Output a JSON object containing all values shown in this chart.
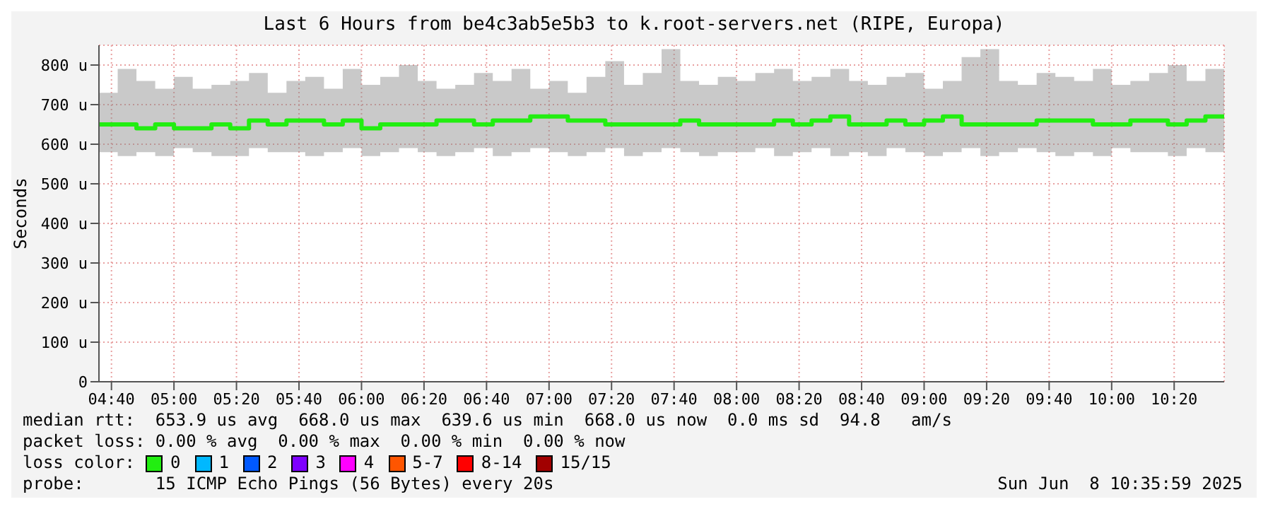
{
  "chart_data": {
    "type": "step",
    "title": "Last 6 Hours from be4c3ab5e5b3 to k.root-servers.net (RIPE, Europa)",
    "ylabel": "Seconds",
    "x": [
      4.6,
      4.7,
      4.8,
      4.9,
      5.0,
      5.1,
      5.2,
      5.3,
      5.4,
      5.5,
      5.6,
      5.7,
      5.8,
      5.9,
      6.0,
      6.1,
      6.2,
      6.3,
      6.4,
      6.5,
      6.6,
      6.7,
      6.8,
      6.9,
      7.0,
      7.1,
      7.2,
      7.3,
      7.4,
      7.5,
      7.6,
      7.7,
      7.8,
      7.9,
      8.0,
      8.1,
      8.2,
      8.3,
      8.4,
      8.5,
      8.6,
      8.7,
      8.8,
      8.9,
      9.0,
      9.1,
      9.2,
      9.3,
      9.4,
      9.5,
      9.6,
      9.7,
      9.8,
      9.9,
      10.0,
      10.1,
      10.2,
      10.3,
      10.4,
      10.5,
      10.6
    ],
    "series": [
      {
        "name": "0",
        "color": "#22ee11",
        "values": [
          650,
          650,
          640,
          650,
          640,
          640,
          650,
          640,
          660,
          650,
          660,
          660,
          650,
          660,
          640,
          650,
          650,
          650,
          660,
          660,
          650,
          660,
          660,
          670,
          670,
          660,
          660,
          650,
          650,
          650,
          650,
          660,
          650,
          650,
          650,
          650,
          660,
          650,
          660,
          670,
          650,
          650,
          660,
          650,
          660,
          670,
          650,
          650,
          650,
          650,
          660,
          660,
          660,
          650,
          650,
          660,
          660,
          650,
          660,
          670,
          670
        ],
        "lower": [
          580,
          570,
          580,
          570,
          590,
          580,
          570,
          570,
          590,
          580,
          580,
          570,
          580,
          590,
          570,
          580,
          590,
          580,
          570,
          580,
          590,
          570,
          580,
          590,
          580,
          570,
          580,
          590,
          570,
          580,
          590,
          580,
          570,
          580,
          580,
          590,
          570,
          580,
          590,
          570,
          580,
          570,
          590,
          580,
          570,
          580,
          590,
          570,
          580,
          590,
          580,
          570,
          580,
          570,
          590,
          580,
          580,
          570,
          590,
          580,
          580
        ],
        "upper": [
          730,
          790,
          760,
          740,
          770,
          740,
          750,
          760,
          780,
          730,
          760,
          770,
          740,
          790,
          750,
          770,
          800,
          760,
          740,
          750,
          780,
          760,
          790,
          740,
          760,
          730,
          770,
          810,
          750,
          780,
          840,
          760,
          750,
          770,
          760,
          780,
          790,
          760,
          770,
          790,
          760,
          750,
          770,
          780,
          740,
          760,
          820,
          840,
          760,
          750,
          780,
          770,
          760,
          790,
          750,
          760,
          780,
          800,
          760,
          790,
          790
        ]
      },
      {
        "name": "1",
        "color": "#00b8ff",
        "values": [
          null,
          null,
          null,
          null,
          null,
          null,
          null,
          null,
          null,
          null,
          null,
          null,
          null,
          null,
          null,
          null,
          null,
          null,
          null,
          null,
          null,
          null,
          null,
          null,
          null,
          null,
          null,
          null,
          null,
          null,
          null,
          null,
          null,
          null,
          null,
          null,
          null,
          null,
          null,
          null,
          null,
          null,
          null,
          null,
          null,
          null,
          null,
          null,
          null,
          null,
          null,
          null,
          null,
          null,
          null,
          null,
          null,
          null,
          null,
          null,
          null
        ]
      },
      {
        "name": "2",
        "color": "#0059ff",
        "values": [
          null,
          null,
          null,
          null,
          null,
          null,
          null,
          null,
          null,
          null,
          null,
          null,
          null,
          null,
          null,
          null,
          null,
          null,
          null,
          null,
          null,
          null,
          null,
          null,
          null,
          null,
          null,
          null,
          null,
          null,
          null,
          null,
          null,
          null,
          null,
          null,
          null,
          null,
          null,
          null,
          null,
          null,
          null,
          null,
          null,
          null,
          null,
          null,
          null,
          null,
          null,
          null,
          null,
          null,
          null,
          null,
          null,
          null,
          null,
          null,
          null
        ]
      },
      {
        "name": "3",
        "color": "#7e00ff",
        "values": [
          null,
          null,
          null,
          null,
          null,
          null,
          null,
          null,
          null,
          null,
          null,
          null,
          null,
          null,
          null,
          null,
          null,
          null,
          null,
          null,
          null,
          null,
          null,
          null,
          null,
          null,
          null,
          null,
          null,
          null,
          null,
          null,
          null,
          null,
          null,
          null,
          null,
          null,
          null,
          null,
          null,
          null,
          null,
          null,
          null,
          null,
          null,
          null,
          null,
          null,
          null,
          null,
          null,
          null,
          null,
          null,
          null,
          null,
          null,
          null,
          null
        ]
      },
      {
        "name": "4",
        "color": "#ff00ff",
        "values": [
          null,
          null,
          null,
          null,
          null,
          null,
          null,
          null,
          null,
          null,
          null,
          null,
          null,
          null,
          null,
          null,
          null,
          null,
          null,
          null,
          null,
          null,
          null,
          null,
          null,
          null,
          null,
          null,
          null,
          null,
          null,
          null,
          null,
          null,
          null,
          null,
          null,
          null,
          null,
          null,
          null,
          null,
          null,
          null,
          null,
          null,
          null,
          null,
          null,
          null,
          null,
          null,
          null,
          null,
          null,
          null,
          null,
          null,
          null,
          null,
          null
        ]
      },
      {
        "name": "5-7",
        "color": "#ff5500",
        "values": [
          null,
          null,
          null,
          null,
          null,
          null,
          null,
          null,
          null,
          null,
          null,
          null,
          null,
          null,
          null,
          null,
          null,
          null,
          null,
          null,
          null,
          null,
          null,
          null,
          null,
          null,
          null,
          null,
          null,
          null,
          null,
          null,
          null,
          null,
          null,
          null,
          null,
          null,
          null,
          null,
          null,
          null,
          null,
          null,
          null,
          null,
          null,
          null,
          null,
          null,
          null,
          null,
          null,
          null,
          null,
          null,
          null,
          null,
          null,
          null,
          null
        ]
      },
      {
        "name": "8-14",
        "color": "#ff0000",
        "values": [
          null,
          null,
          null,
          null,
          null,
          null,
          null,
          null,
          null,
          null,
          null,
          null,
          null,
          null,
          null,
          null,
          null,
          null,
          null,
          null,
          null,
          null,
          null,
          null,
          null,
          null,
          null,
          null,
          null,
          null,
          null,
          null,
          null,
          null,
          null,
          null,
          null,
          null,
          null,
          null,
          null,
          null,
          null,
          null,
          null,
          null,
          null,
          null,
          null,
          null,
          null,
          null,
          null,
          null,
          null,
          null,
          null,
          null,
          null,
          null,
          null
        ]
      },
      {
        "name": "15/15",
        "color": "#a10000",
        "values": [
          null,
          null,
          null,
          null,
          null,
          null,
          null,
          null,
          null,
          null,
          null,
          null,
          null,
          null,
          null,
          null,
          null,
          null,
          null,
          null,
          null,
          null,
          null,
          null,
          null,
          null,
          null,
          null,
          null,
          null,
          null,
          null,
          null,
          null,
          null,
          null,
          null,
          null,
          null,
          null,
          null,
          null,
          null,
          null,
          null,
          null,
          null,
          null,
          null,
          null,
          null,
          null,
          null,
          null,
          null,
          null,
          null,
          null,
          null,
          null,
          null
        ]
      }
    ],
    "xlim": [
      4.6,
      10.6
    ],
    "xticks": [
      {
        "value": 4.6667,
        "label": "04:40"
      },
      {
        "value": 5,
        "label": "05:00"
      },
      {
        "value": 5.3333,
        "label": "05:20"
      },
      {
        "value": 5.6667,
        "label": "05:40"
      },
      {
        "value": 6,
        "label": "06:00"
      },
      {
        "value": 6.3333,
        "label": "06:20"
      },
      {
        "value": 6.6667,
        "label": "06:40"
      },
      {
        "value": 7,
        "label": "07:00"
      },
      {
        "value": 7.3333,
        "label": "07:20"
      },
      {
        "value": 7.6667,
        "label": "07:40"
      },
      {
        "value": 8,
        "label": "08:00"
      },
      {
        "value": 8.3333,
        "label": "08:20"
      },
      {
        "value": 8.6667,
        "label": "08:40"
      },
      {
        "value": 9,
        "label": "09:00"
      },
      {
        "value": 9.3333,
        "label": "09:20"
      },
      {
        "value": 9.6667,
        "label": "09:40"
      },
      {
        "value": 10,
        "label": "10:00"
      },
      {
        "value": 10.3333,
        "label": "10:20"
      }
    ],
    "ylim": [
      0,
      850
    ],
    "yticks": [
      0,
      {
        "value": 100,
        "label": "100 u"
      },
      {
        "value": 200,
        "label": "200 u"
      },
      {
        "value": 300,
        "label": "300 u"
      },
      {
        "value": 400,
        "label": "400 u"
      },
      {
        "value": 500,
        "label": "500 u"
      },
      {
        "value": 600,
        "label": "600 u"
      },
      {
        "value": 700,
        "label": "700 u"
      },
      {
        "value": 800,
        "label": "800 u"
      }
    ],
    "grid": true,
    "legend": "bottom",
    "line_style": "solid",
    "marker": "none",
    "annotations": [
      "median rtt:  653.9 us avg  668.0 us max  639.6 us min  668.0 us now  0.0 ms sd  94.8   am/s",
      "packet loss: 0.00 % avg  0.00 % max  0.00 % min  0.00 % now",
      "loss color:",
      "probe:       15 ICMP Echo Pings (56 Bytes) every 20s",
      "Sun Jun  8 10:35:59 2025"
    ]
  }
}
